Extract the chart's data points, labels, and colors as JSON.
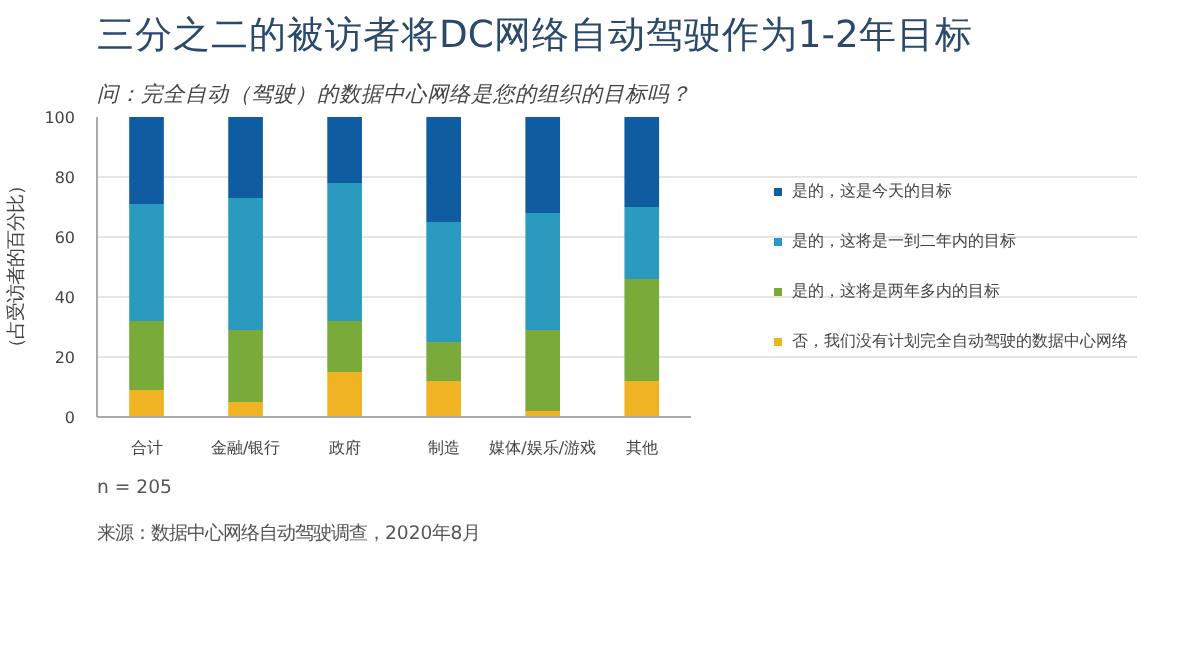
{
  "chart_data": {
    "type": "bar",
    "stacked": true,
    "title": "三分之二的被访者将DC网络自动驾驶作为1-2年目标",
    "subtitle": "问：完全自动（驾驶）的数据中心网络是您的组织的目标吗？",
    "ylabel": "（占受访者的百分比）",
    "categories": [
      "合计",
      "金融/银行",
      "政府",
      "制造",
      "媒体/娱乐/游戏",
      "其他"
    ],
    "series": [
      {
        "name": "否，我们没有计划完全自动驾驶的数据中心网络",
        "color": "#f0b323",
        "values": [
          9,
          5,
          15,
          12,
          2,
          12
        ]
      },
      {
        "name": "是的，这将是两年多内的目标",
        "color": "#7aab3a",
        "values": [
          23,
          24,
          17,
          13,
          27,
          34
        ]
      },
      {
        "name": "是的，这将是一到二年内的目标",
        "color": "#2a9bbf",
        "values": [
          39,
          44,
          46,
          40,
          39,
          24
        ]
      },
      {
        "name": "是的，这是今天的目标",
        "color": "#0f5ca0",
        "values": [
          29,
          27,
          22,
          35,
          32,
          30
        ]
      }
    ],
    "ylim": [
      0,
      100
    ],
    "yticks": [
      0,
      20,
      40,
      60,
      80,
      100
    ],
    "grid": "y",
    "legend": "right",
    "annotations": [
      "n = 205",
      "来源：数据中心网络自动驾驶调查，2020年8月"
    ]
  }
}
